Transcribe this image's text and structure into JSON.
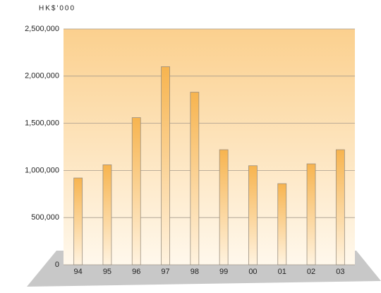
{
  "chart_data": {
    "type": "bar",
    "y_label": "HK$'000",
    "categories": [
      "94",
      "95",
      "96",
      "97",
      "98",
      "99",
      "00",
      "01",
      "02",
      "03"
    ],
    "values": [
      920000,
      1060000,
      1560000,
      2100000,
      1830000,
      1220000,
      1050000,
      860000,
      1070000,
      1220000
    ],
    "color": "#f7b44f",
    "ylim": [
      0,
      2500000
    ],
    "yticks": [
      0,
      {
        "value": 500000,
        "label": "500,000"
      },
      {
        "value": 1000000,
        "label": "1,000,000"
      },
      {
        "value": 1500000,
        "label": "1,500,000"
      },
      {
        "value": 2000000,
        "label": "2,000,000"
      },
      {
        "value": 2500000,
        "label": "2,500,000"
      }
    ],
    "grid": true
  }
}
